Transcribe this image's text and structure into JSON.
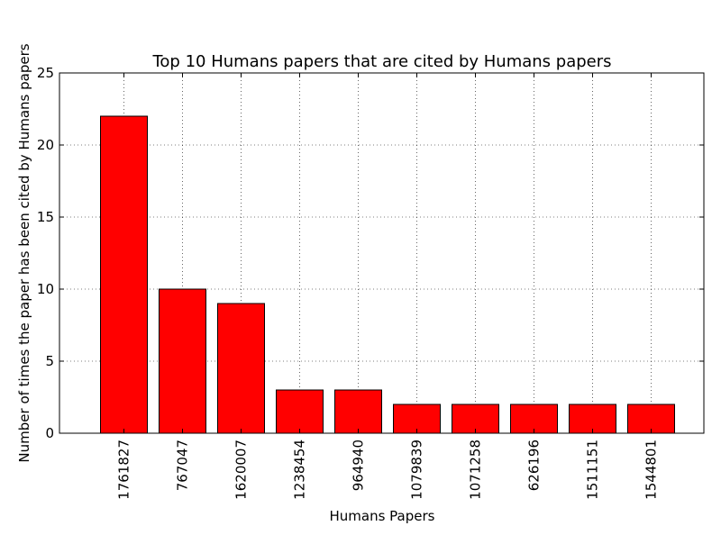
{
  "chart_data": {
    "type": "bar",
    "title": "Top 10 Humans papers that are cited by Humans papers",
    "xlabel": "Humans Papers",
    "ylabel": "Number of times the paper has been cited by Humans papers",
    "categories": [
      "1761827",
      "767047",
      "1620007",
      "1238454",
      "964940",
      "1079839",
      "1071258",
      "626196",
      "1511151",
      "1544801"
    ],
    "values": [
      22,
      10,
      9,
      3,
      3,
      2,
      2,
      2,
      2,
      2
    ],
    "ylim": [
      0,
      25
    ],
    "yticks": [
      "0",
      "5",
      "10",
      "15",
      "20",
      "25"
    ],
    "grid": true,
    "bar_color": "#ff0000",
    "edge_color": "#000000"
  }
}
